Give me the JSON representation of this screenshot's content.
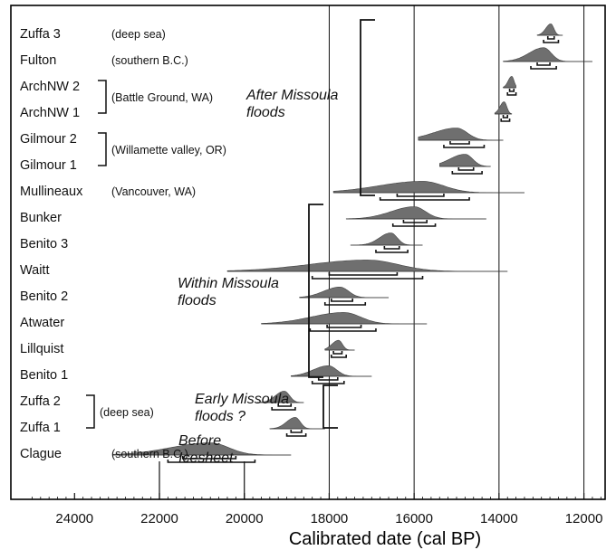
{
  "chart_data": {
    "type": "scatter",
    "title": "",
    "xlabel": "Calibrated date (cal BP)",
    "ylabel": "",
    "x_reversed": true,
    "xlim": [
      25500,
      11500
    ],
    "x_ticks": [
      24000,
      22000,
      20000,
      18000,
      16000,
      14000,
      12000
    ],
    "gridlines": [
      18000,
      16000,
      14000,
      12000
    ],
    "samples": [
      {
        "name": "Zuffa 3",
        "note": "(deep sea)",
        "peak": 12780,
        "spread": 80,
        "skew": 0.6,
        "h": 0.7,
        "tails": [
          13100,
          12500
        ],
        "r2": [
          12950,
          12600
        ],
        "r1": [
          12850,
          12700
        ]
      },
      {
        "name": "Fulton",
        "note": "(southern B.C.)",
        "peak": 12950,
        "spread": 200,
        "skew": 0.9,
        "h": 0.85,
        "tails": [
          13900,
          11800
        ],
        "r2": [
          13250,
          12650
        ],
        "r1": [
          13100,
          12800
        ]
      },
      {
        "name": "ArchNW 2",
        "note": "",
        "peak": 13700,
        "spread": 60,
        "skew": 0.5,
        "h": 0.7,
        "tails": [
          13900,
          13600
        ],
        "r2": [
          13800,
          13600
        ],
        "r1": [
          13750,
          13650
        ]
      },
      {
        "name": "ArchNW 1",
        "note": "",
        "peak": 13880,
        "spread": 70,
        "skew": 0.5,
        "h": 0.75,
        "tails": [
          14100,
          13700
        ],
        "r2": [
          13950,
          13750
        ],
        "r1": [
          13900,
          13800
        ]
      },
      {
        "name": "Gilmour 2",
        "note": "",
        "peak": 15000,
        "spread": 280,
        "skew": 1.2,
        "h": 0.75,
        "tails": [
          15900,
          13900
        ],
        "r2": [
          15300,
          14350
        ],
        "r1": [
          15150,
          14700
        ]
      },
      {
        "name": "Gilmour 1",
        "note": "",
        "peak": 14800,
        "spread": 200,
        "skew": 1.0,
        "h": 0.75,
        "tails": [
          15400,
          14200
        ],
        "r2": [
          15100,
          14400
        ],
        "r1": [
          14950,
          14600
        ]
      },
      {
        "name": "Mullineaux",
        "note": "(Vancouver, WA)",
        "peak": 15800,
        "spread": 550,
        "skew": 1.1,
        "h": 0.7,
        "tails": [
          17900,
          13400
        ],
        "r2": [
          16800,
          14700
        ],
        "r1": [
          16400,
          15300
        ]
      },
      {
        "name": "Bunker",
        "note": "",
        "peak": 16000,
        "spread": 300,
        "skew": 1.0,
        "h": 0.75,
        "tails": [
          17600,
          14300
        ],
        "r2": [
          16500,
          15500
        ],
        "r1": [
          16250,
          15700
        ]
      },
      {
        "name": "Benito 3",
        "note": "",
        "peak": 16550,
        "spread": 170,
        "skew": 0.7,
        "h": 0.75,
        "tails": [
          17500,
          15800
        ],
        "r2": [
          16900,
          16150
        ],
        "r1": [
          16700,
          16350
        ]
      },
      {
        "name": "Waitt",
        "note": "",
        "peak": 17100,
        "spread": 800,
        "skew": 0.9,
        "h": 0.7,
        "tails": [
          20400,
          13800
        ],
        "r2": [
          18400,
          15800
        ],
        "r1": [
          18000,
          16400
        ]
      },
      {
        "name": "Benito 2",
        "note": "",
        "peak": 17750,
        "spread": 230,
        "skew": 0.8,
        "h": 0.65,
        "tails": [
          18700,
          16600
        ],
        "r2": [
          18100,
          17150
        ],
        "r1": [
          17950,
          17450
        ]
      },
      {
        "name": "Atwater",
        "note": "",
        "peak": 17650,
        "spread": 430,
        "skew": 1.0,
        "h": 0.7,
        "tails": [
          19600,
          15700
        ],
        "r2": [
          18450,
          16900
        ],
        "r1": [
          18050,
          17250
        ]
      },
      {
        "name": "Lillquist",
        "note": "",
        "peak": 17780,
        "spread": 100,
        "skew": 0.7,
        "h": 0.6,
        "tails": [
          18100,
          17400
        ],
        "r2": [
          17950,
          17600
        ],
        "r1": [
          17900,
          17700
        ]
      },
      {
        "name": "Benito 1",
        "note": "",
        "peak": 18020,
        "spread": 220,
        "skew": 0.8,
        "h": 0.65,
        "tails": [
          18900,
          17000
        ],
        "r2": [
          18400,
          17650
        ],
        "r1": [
          18250,
          17800
        ]
      },
      {
        "name": "Zuffa 2",
        "note": "",
        "peak": 19060,
        "spread": 140,
        "skew": 0.6,
        "h": 0.7,
        "tails": [
          19700,
          18600
        ],
        "r2": [
          19350,
          18800
        ],
        "r1": [
          19200,
          18900
        ]
      },
      {
        "name": "Zuffa 1",
        "note": "",
        "peak": 18800,
        "spread": 130,
        "skew": 0.7,
        "h": 0.7,
        "tails": [
          19400,
          18100
        ],
        "r2": [
          19000,
          18550
        ],
        "r1": [
          18900,
          18650
        ]
      },
      {
        "name": "Clague",
        "note": "(southern B.C.)",
        "peak": 20800,
        "spread": 480,
        "skew": 1.2,
        "h": 0.75,
        "tails": [
          23100,
          18900
        ],
        "r2": [
          21800,
          19750
        ],
        "r1": [
          21450,
          20200
        ]
      }
    ],
    "pair_notes": [
      {
        "text": "(Battle Ground, WA)",
        "rows": [
          2,
          3
        ]
      },
      {
        "text": "(Willamette valley, OR)",
        "rows": [
          4,
          5
        ]
      },
      {
        "text": "(deep sea)",
        "rows": [
          14,
          15
        ]
      }
    ],
    "groups": [
      {
        "label": "After Missoula floods",
        "line1": "After Missoula",
        "line2": "floods",
        "rows": [
          0,
          6
        ],
        "x_bracket": 15500
      },
      {
        "label": "Within Missoula floods",
        "line1": "Within Missoula",
        "line2": "floods",
        "rows": [
          7,
          13
        ],
        "x_bracket": 19000
      },
      {
        "label": "Early Missoula floods ?",
        "line1": "Early Missoula",
        "line2": "floods ?",
        "rows": [
          14,
          15
        ],
        "x_bracket": 19600
      },
      {
        "label": "Before Icesheet",
        "line1": "Before",
        "line2": "Icesheet",
        "rows": [
          16,
          16
        ],
        "x_bracket": null
      }
    ],
    "icesheet_markers": [
      22000,
      20000
    ],
    "colors": {
      "fill": "#6f6f6f",
      "line": "#111111",
      "frame": "#000000"
    }
  }
}
